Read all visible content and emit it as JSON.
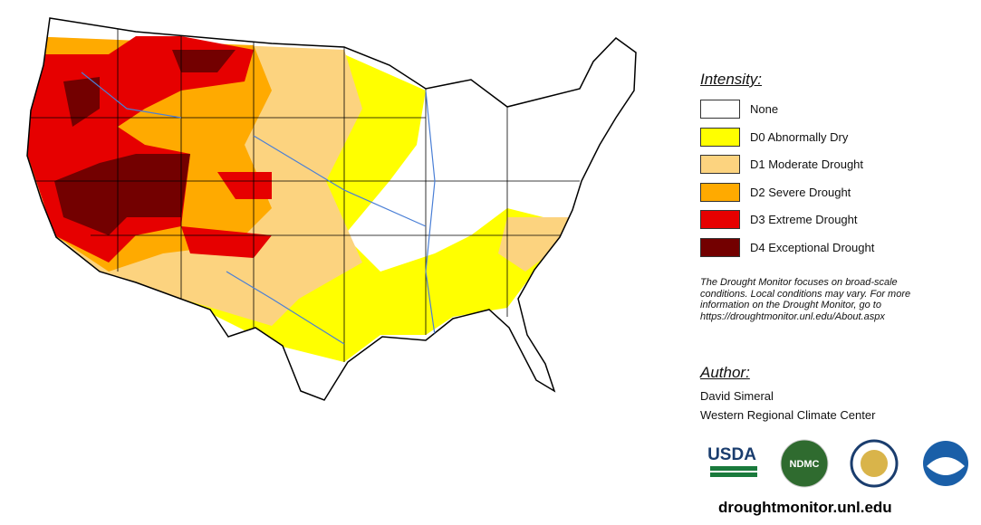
{
  "legend": {
    "title": "Intensity:",
    "items": [
      {
        "label": "None",
        "color": "#ffffff"
      },
      {
        "label": "D0 Abnormally Dry",
        "color": "#ffff00"
      },
      {
        "label": "D1 Moderate Drought",
        "color": "#fcd37f"
      },
      {
        "label": "D2 Severe Drought",
        "color": "#ffaa00"
      },
      {
        "label": "D3 Extreme Drought",
        "color": "#e60000"
      },
      {
        "label": "D4 Exceptional Drought",
        "color": "#730000"
      }
    ]
  },
  "note": [
    "The Drought Monitor focuses on broad-scale",
    "conditions. Local conditions may vary. For more",
    "information on the Drought Monitor, go to",
    "https://droughtmonitor.unl.edu/About.aspx"
  ],
  "author": {
    "title": "Author:",
    "lines": [
      "David Simeral",
      "Western Regional Climate Center"
    ]
  },
  "logos": [
    "USDA",
    "NDMC"
  ],
  "url": "droughtmonitor.unl.edu"
}
